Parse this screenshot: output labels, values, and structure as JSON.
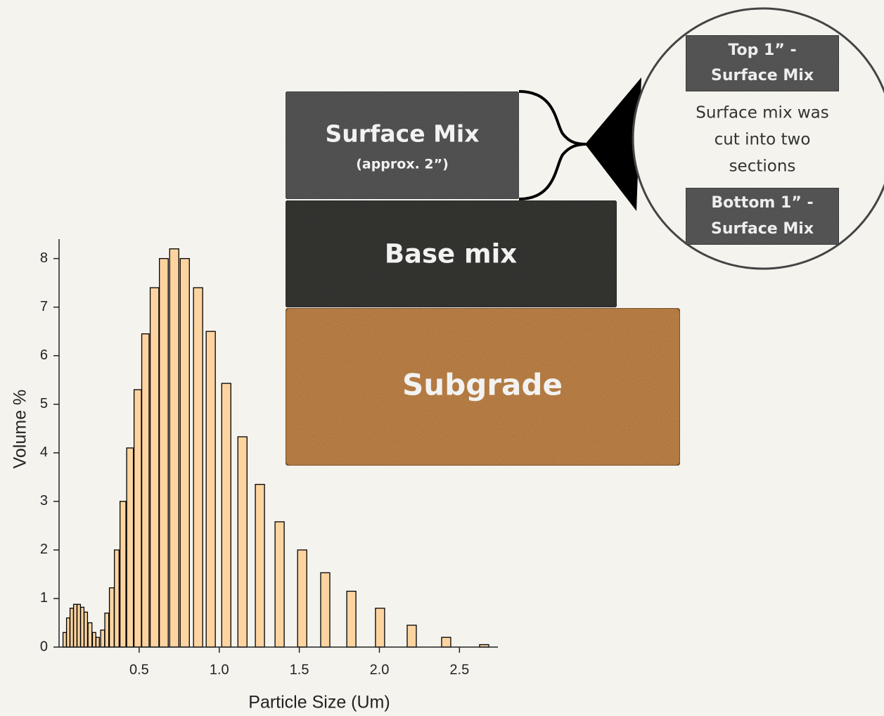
{
  "chart_data": {
    "type": "bar",
    "x_label": "Particle Size (Um)",
    "y_label": "Volume %",
    "x": [
      0.035,
      0.057,
      0.079,
      0.101,
      0.123,
      0.145,
      0.167,
      0.193,
      0.219,
      0.241,
      0.272,
      0.298,
      0.329,
      0.36,
      0.399,
      0.443,
      0.491,
      0.539,
      0.596,
      0.654,
      0.719,
      0.785,
      0.868,
      0.947,
      1.044,
      1.145,
      1.254,
      1.377,
      1.518,
      1.662,
      1.825,
      2.004,
      2.202,
      2.417,
      2.654
    ],
    "values": [
      0.3,
      0.6,
      0.8,
      0.88,
      0.88,
      0.82,
      0.72,
      0.5,
      0.3,
      0.2,
      0.35,
      0.7,
      1.22,
      2.0,
      3.0,
      4.1,
      5.3,
      6.45,
      7.4,
      8.0,
      8.2,
      8.0,
      7.4,
      6.5,
      5.43,
      4.33,
      3.35,
      2.58,
      2.0,
      1.53,
      1.15,
      0.8,
      0.45,
      0.2,
      0.05
    ],
    "color": "#fdd4a0",
    "edge_color": "#000000",
    "xlim": [
      0,
      2.74
    ],
    "ylim": [
      0,
      8.4
    ],
    "xticks": [
      0.5,
      {
        "value": 1,
        "label": "1.0"
      },
      1.5,
      {
        "value": 2,
        "label": "2.0"
      },
      2.5
    ],
    "yticks": [
      0,
      1,
      2,
      3,
      4,
      5,
      6,
      7,
      8
    ],
    "grid": false
  },
  "diagram": {
    "layers": [
      {
        "label": "Surface Mix",
        "note": "(approx. 2”)"
      },
      {
        "label": "Base mix"
      },
      {
        "label": "Subgrade"
      }
    ],
    "callout": {
      "top_box": [
        "Top 1” -",
        "Surface Mix"
      ],
      "text": [
        "Surface mix was",
        "cut into two",
        "sections"
      ],
      "bottom_box": [
        "Bottom 1” -",
        "Surface Mix"
      ]
    }
  }
}
